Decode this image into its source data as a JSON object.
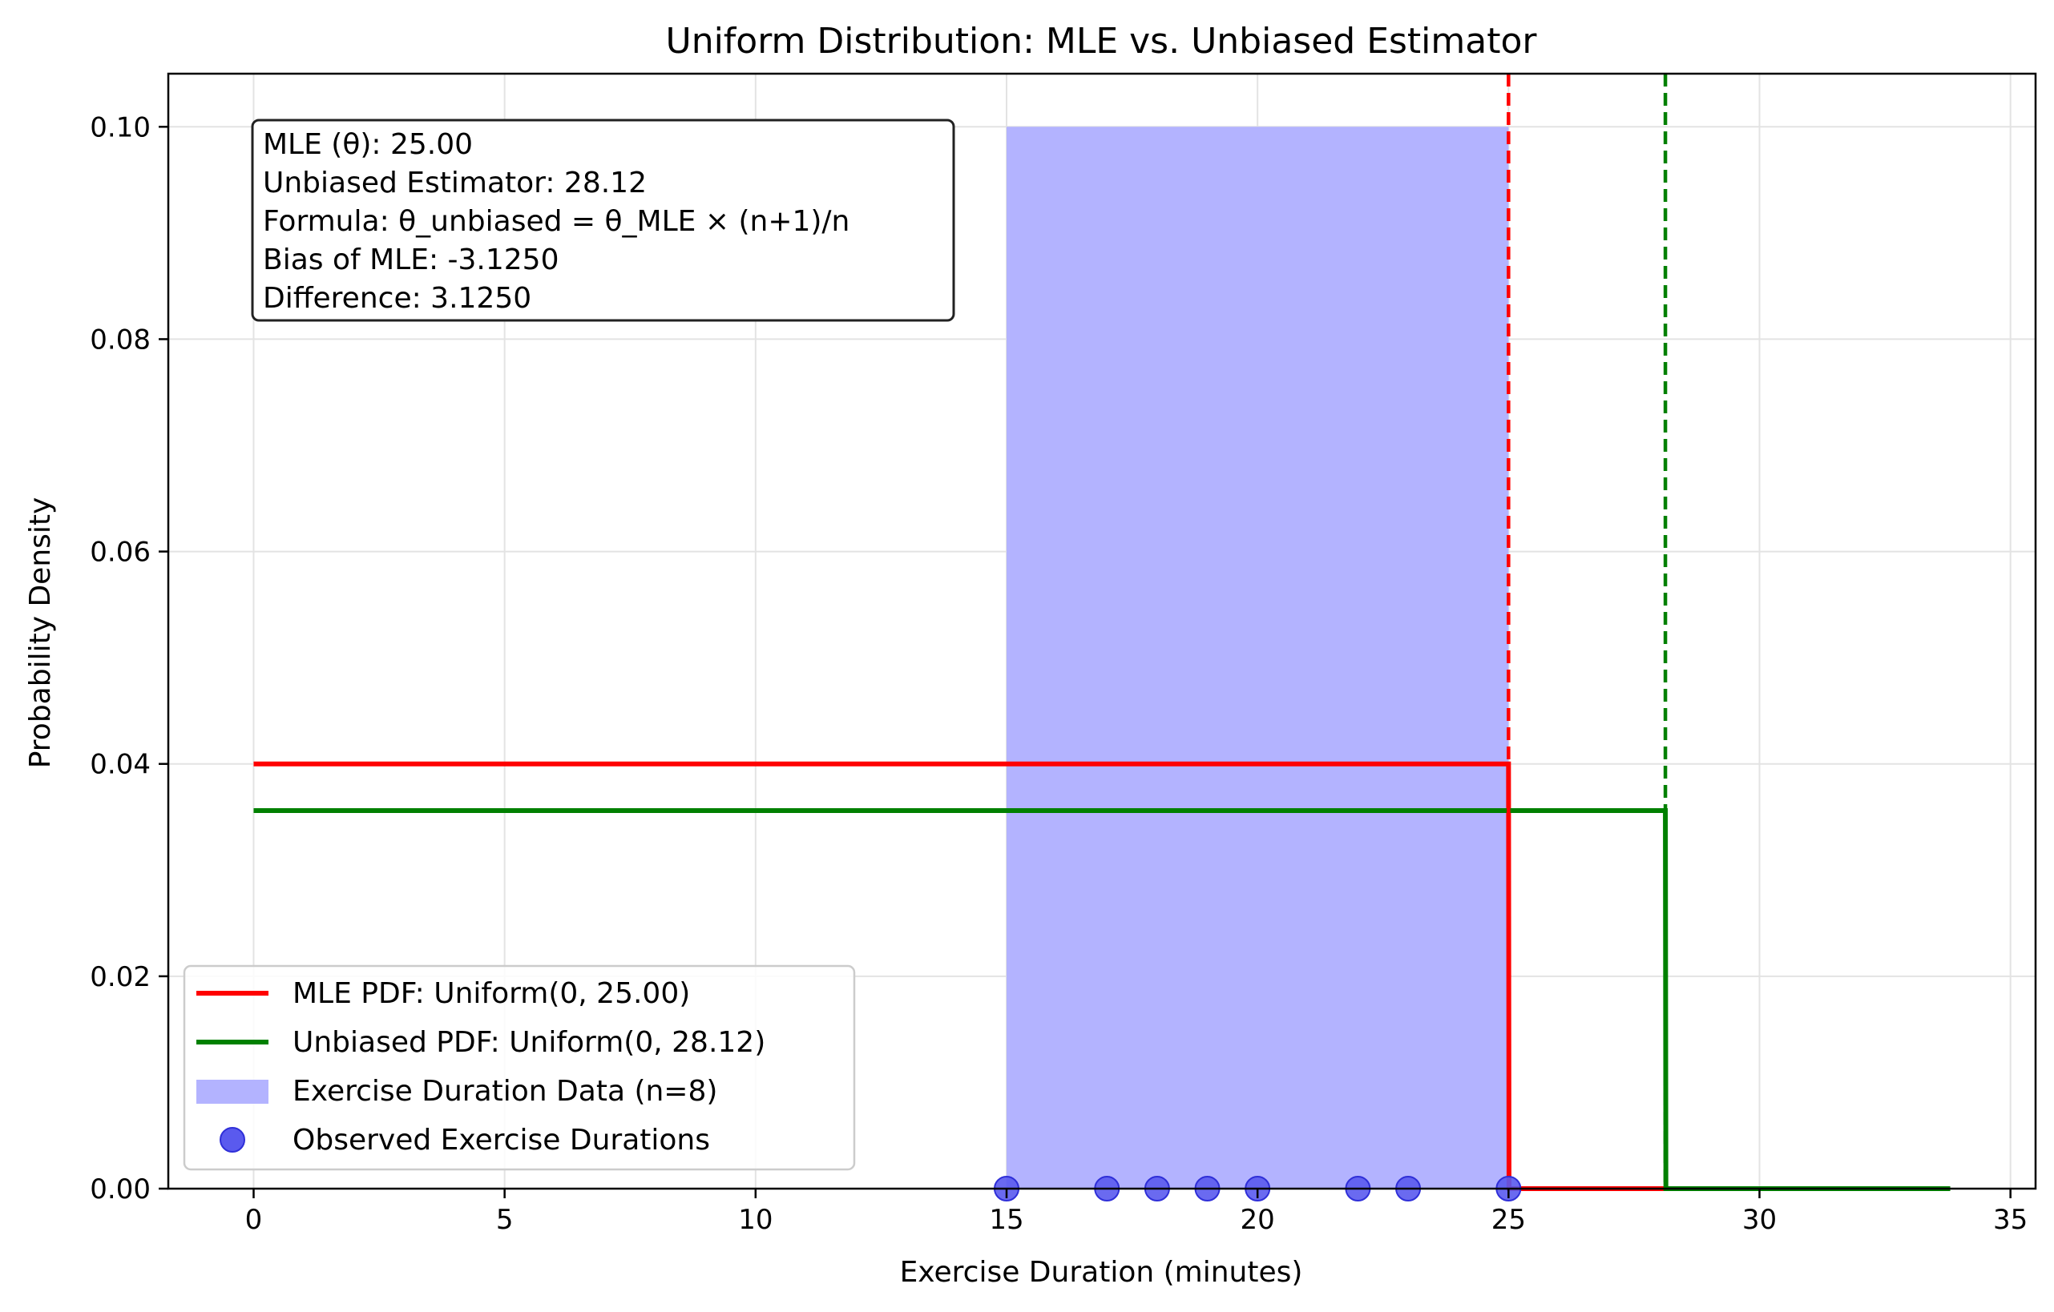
{
  "chart_data": {
    "type": "line",
    "title": "Uniform Distribution: MLE vs. Unbiased Estimator",
    "xlabel": "Exercise Duration (minutes)",
    "ylabel": "Probability Density",
    "xlim": [
      -1.7,
      35.5
    ],
    "ylim": [
      0,
      0.105
    ],
    "x_ticks": [
      0,
      5,
      10,
      15,
      20,
      25,
      30,
      35
    ],
    "x_tick_labels": [
      "0",
      "5",
      "10",
      "15",
      "20",
      "25",
      "30",
      "35"
    ],
    "y_ticks": [
      0,
      0.02,
      0.04,
      0.06,
      0.08,
      0.1
    ],
    "y_tick_labels": [
      "0.00",
      "0.02",
      "0.04",
      "0.06",
      "0.08",
      "0.10"
    ],
    "grid": true,
    "legend_position": "lower-left",
    "series": [
      {
        "name": "MLE PDF: Uniform(0, 25.00)",
        "kind": "line",
        "color": "#ff0000",
        "x": [
          0,
          25,
          25.01,
          33.8
        ],
        "y": [
          0.04,
          0.04,
          0,
          0
        ]
      },
      {
        "name": "Unbiased PDF: Uniform(0, 28.12)",
        "kind": "line",
        "color": "#008000",
        "x": [
          0,
          28.125,
          28.135,
          33.8
        ],
        "y": [
          0.0356,
          0.0356,
          0,
          0
        ]
      },
      {
        "name": "Exercise Duration Data (n=8)",
        "kind": "histogram",
        "color": "#b3b3ff",
        "bin_start": 15,
        "bin_end": 25,
        "value": 0.1
      },
      {
        "name": "Observed Exercise Durations",
        "kind": "scatter",
        "color": "#5a5aee",
        "x": [
          15,
          17,
          18,
          19,
          20,
          22,
          23,
          25
        ],
        "y": [
          0,
          0,
          0,
          0,
          0,
          0,
          0,
          0
        ]
      }
    ],
    "vlines": [
      {
        "x": 25,
        "color": "#ff0000",
        "style": "dashed"
      },
      {
        "x": 28.125,
        "color": "#008000",
        "style": "dashed"
      }
    ],
    "annotation": {
      "lines": [
        "MLE (θ): 25.00",
        "Unbiased Estimator: 28.12",
        "Formula: θ_unbiased = θ_MLE × (n+1)/n",
        "Bias of MLE: -3.1250",
        "Difference: 3.1250"
      ]
    }
  }
}
